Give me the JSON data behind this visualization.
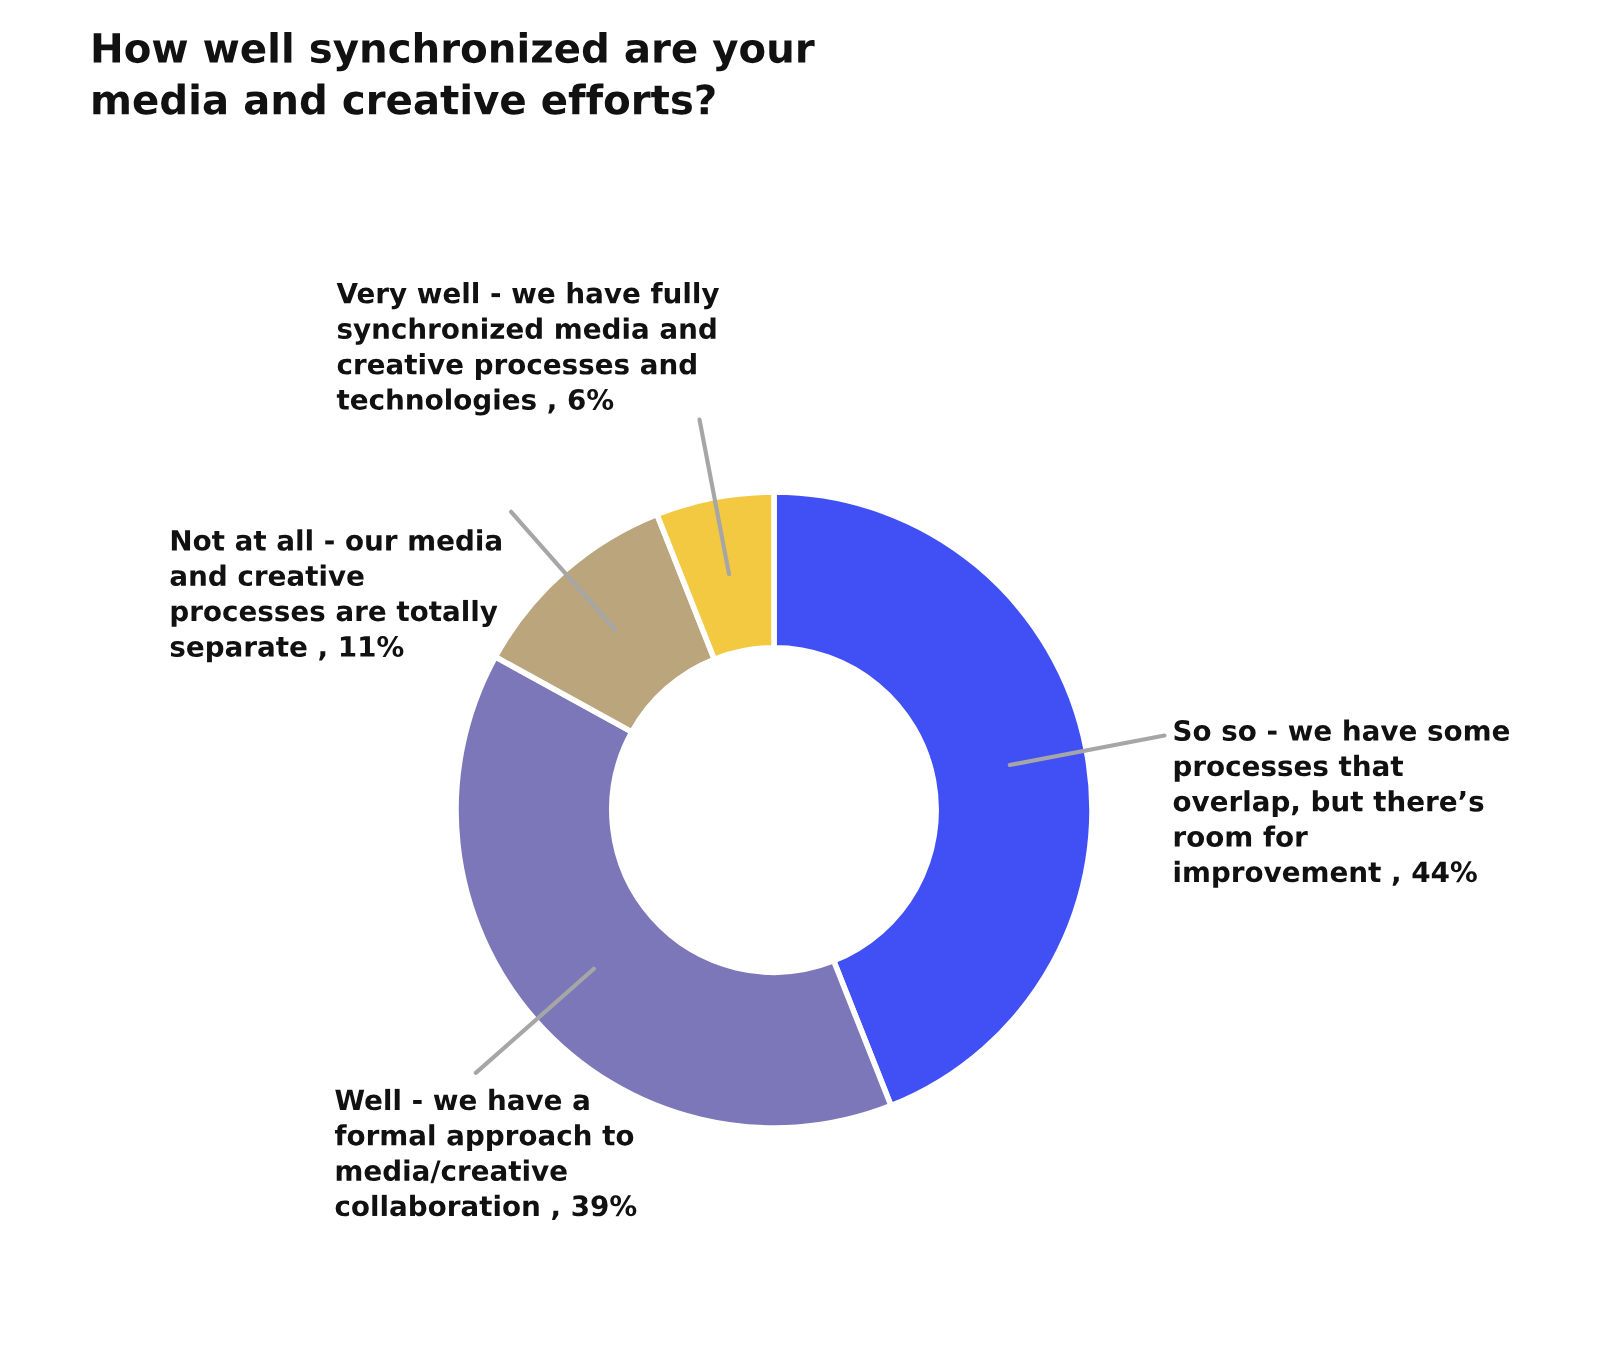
{
  "chart_data": {
    "type": "donut",
    "title": "How well synchronized are your media and creative efforts?",
    "categories": [
      "So so - we have some processes that overlap, but there’s room for improvement , 44%",
      "Well - we have a formal approach to media/creative collaboration , 39%",
      "Not at all - our media and creative processes are totally separate , 11%",
      "Very well - we have fully synchronized media and creative processes and technologies , 6%"
    ],
    "values": [
      44,
      39,
      11,
      6
    ],
    "colors": [
      "#4150f4",
      "#7b77b9",
      "#bba57d",
      "#f4c942"
    ]
  }
}
